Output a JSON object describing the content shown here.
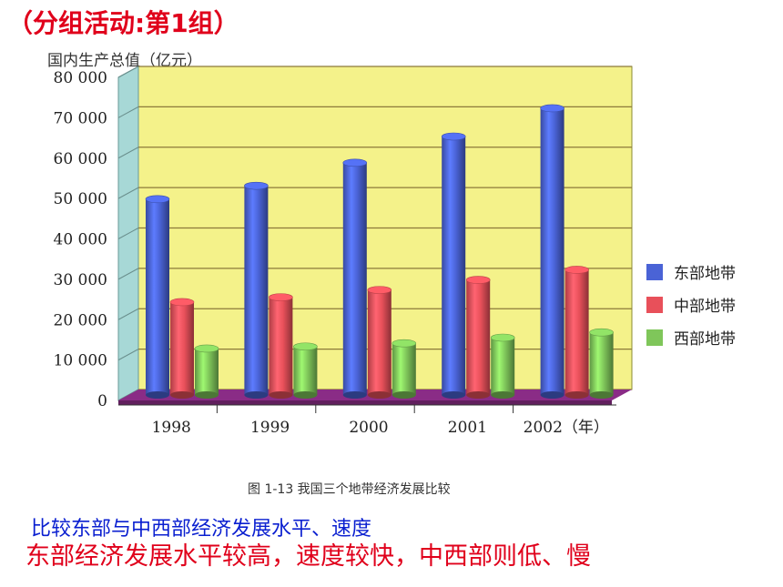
{
  "activity_title": "（分组活动:第1组）",
  "figure_caption": "图 1-13   我国三个地带经济发展比较",
  "question": "比较东部与中西部经济发展水平、速度",
  "answer": "东部经济发展水平较高，速度较快，中西部则低、慢",
  "colors": {
    "east": "#4a63d6",
    "central": "#e8505a",
    "west": "#7fc65a",
    "plot_back": "#f4f28a",
    "plot_wall": "#a7d8d6",
    "floor": "#8a2c86"
  },
  "chart_data": {
    "type": "bar",
    "ylabel": "国内生产总值（亿元）",
    "categories": [
      "1998",
      "1999",
      "2000",
      "2001",
      "2002（年）"
    ],
    "series": [
      {
        "name": "东部地带",
        "values": [
          48500,
          51800,
          57500,
          64000,
          71000
        ]
      },
      {
        "name": "中部地带",
        "values": [
          23000,
          24200,
          26000,
          28500,
          31000
        ]
      },
      {
        "name": "西部地带",
        "values": [
          11500,
          12000,
          12800,
          14200,
          15500
        ]
      }
    ],
    "ylim": [
      0,
      80000
    ],
    "yticks": [
      "0",
      "10 000",
      "20 000",
      "30 000",
      "40 000",
      "50 000",
      "60 000",
      "70 000",
      "80 000"
    ],
    "grid": true,
    "legend_position": "right"
  }
}
